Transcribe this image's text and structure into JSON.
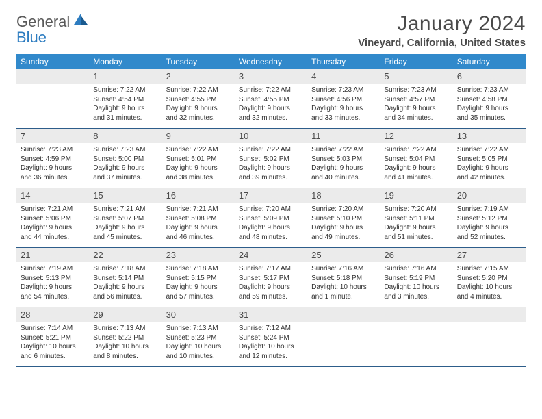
{
  "logo": {
    "text1": "General",
    "text2": "Blue"
  },
  "title": "January 2024",
  "location": "Vineyard, California, United States",
  "colors": {
    "header_bg": "#3189cb",
    "header_text": "#ffffff",
    "daynum_bg": "#ebebeb",
    "border": "#2d5d8a",
    "logo_gray": "#5a5a5a",
    "logo_blue": "#2d7cc0",
    "title_color": "#4a4a4a"
  },
  "day_headers": [
    "Sunday",
    "Monday",
    "Tuesday",
    "Wednesday",
    "Thursday",
    "Friday",
    "Saturday"
  ],
  "weeks": [
    [
      null,
      {
        "n": "1",
        "sunrise": "7:22 AM",
        "sunset": "4:54 PM",
        "daylight": "9 hours and 31 minutes."
      },
      {
        "n": "2",
        "sunrise": "7:22 AM",
        "sunset": "4:55 PM",
        "daylight": "9 hours and 32 minutes."
      },
      {
        "n": "3",
        "sunrise": "7:22 AM",
        "sunset": "4:55 PM",
        "daylight": "9 hours and 32 minutes."
      },
      {
        "n": "4",
        "sunrise": "7:23 AM",
        "sunset": "4:56 PM",
        "daylight": "9 hours and 33 minutes."
      },
      {
        "n": "5",
        "sunrise": "7:23 AM",
        "sunset": "4:57 PM",
        "daylight": "9 hours and 34 minutes."
      },
      {
        "n": "6",
        "sunrise": "7:23 AM",
        "sunset": "4:58 PM",
        "daylight": "9 hours and 35 minutes."
      }
    ],
    [
      {
        "n": "7",
        "sunrise": "7:23 AM",
        "sunset": "4:59 PM",
        "daylight": "9 hours and 36 minutes."
      },
      {
        "n": "8",
        "sunrise": "7:23 AM",
        "sunset": "5:00 PM",
        "daylight": "9 hours and 37 minutes."
      },
      {
        "n": "9",
        "sunrise": "7:22 AM",
        "sunset": "5:01 PM",
        "daylight": "9 hours and 38 minutes."
      },
      {
        "n": "10",
        "sunrise": "7:22 AM",
        "sunset": "5:02 PM",
        "daylight": "9 hours and 39 minutes."
      },
      {
        "n": "11",
        "sunrise": "7:22 AM",
        "sunset": "5:03 PM",
        "daylight": "9 hours and 40 minutes."
      },
      {
        "n": "12",
        "sunrise": "7:22 AM",
        "sunset": "5:04 PM",
        "daylight": "9 hours and 41 minutes."
      },
      {
        "n": "13",
        "sunrise": "7:22 AM",
        "sunset": "5:05 PM",
        "daylight": "9 hours and 42 minutes."
      }
    ],
    [
      {
        "n": "14",
        "sunrise": "7:21 AM",
        "sunset": "5:06 PM",
        "daylight": "9 hours and 44 minutes."
      },
      {
        "n": "15",
        "sunrise": "7:21 AM",
        "sunset": "5:07 PM",
        "daylight": "9 hours and 45 minutes."
      },
      {
        "n": "16",
        "sunrise": "7:21 AM",
        "sunset": "5:08 PM",
        "daylight": "9 hours and 46 minutes."
      },
      {
        "n": "17",
        "sunrise": "7:20 AM",
        "sunset": "5:09 PM",
        "daylight": "9 hours and 48 minutes."
      },
      {
        "n": "18",
        "sunrise": "7:20 AM",
        "sunset": "5:10 PM",
        "daylight": "9 hours and 49 minutes."
      },
      {
        "n": "19",
        "sunrise": "7:20 AM",
        "sunset": "5:11 PM",
        "daylight": "9 hours and 51 minutes."
      },
      {
        "n": "20",
        "sunrise": "7:19 AM",
        "sunset": "5:12 PM",
        "daylight": "9 hours and 52 minutes."
      }
    ],
    [
      {
        "n": "21",
        "sunrise": "7:19 AM",
        "sunset": "5:13 PM",
        "daylight": "9 hours and 54 minutes."
      },
      {
        "n": "22",
        "sunrise": "7:18 AM",
        "sunset": "5:14 PM",
        "daylight": "9 hours and 56 minutes."
      },
      {
        "n": "23",
        "sunrise": "7:18 AM",
        "sunset": "5:15 PM",
        "daylight": "9 hours and 57 minutes."
      },
      {
        "n": "24",
        "sunrise": "7:17 AM",
        "sunset": "5:17 PM",
        "daylight": "9 hours and 59 minutes."
      },
      {
        "n": "25",
        "sunrise": "7:16 AM",
        "sunset": "5:18 PM",
        "daylight": "10 hours and 1 minute."
      },
      {
        "n": "26",
        "sunrise": "7:16 AM",
        "sunset": "5:19 PM",
        "daylight": "10 hours and 3 minutes."
      },
      {
        "n": "27",
        "sunrise": "7:15 AM",
        "sunset": "5:20 PM",
        "daylight": "10 hours and 4 minutes."
      }
    ],
    [
      {
        "n": "28",
        "sunrise": "7:14 AM",
        "sunset": "5:21 PM",
        "daylight": "10 hours and 6 minutes."
      },
      {
        "n": "29",
        "sunrise": "7:13 AM",
        "sunset": "5:22 PM",
        "daylight": "10 hours and 8 minutes."
      },
      {
        "n": "30",
        "sunrise": "7:13 AM",
        "sunset": "5:23 PM",
        "daylight": "10 hours and 10 minutes."
      },
      {
        "n": "31",
        "sunrise": "7:12 AM",
        "sunset": "5:24 PM",
        "daylight": "10 hours and 12 minutes."
      },
      null,
      null,
      null
    ]
  ],
  "labels": {
    "sunrise": "Sunrise:",
    "sunset": "Sunset:",
    "daylight": "Daylight:"
  }
}
